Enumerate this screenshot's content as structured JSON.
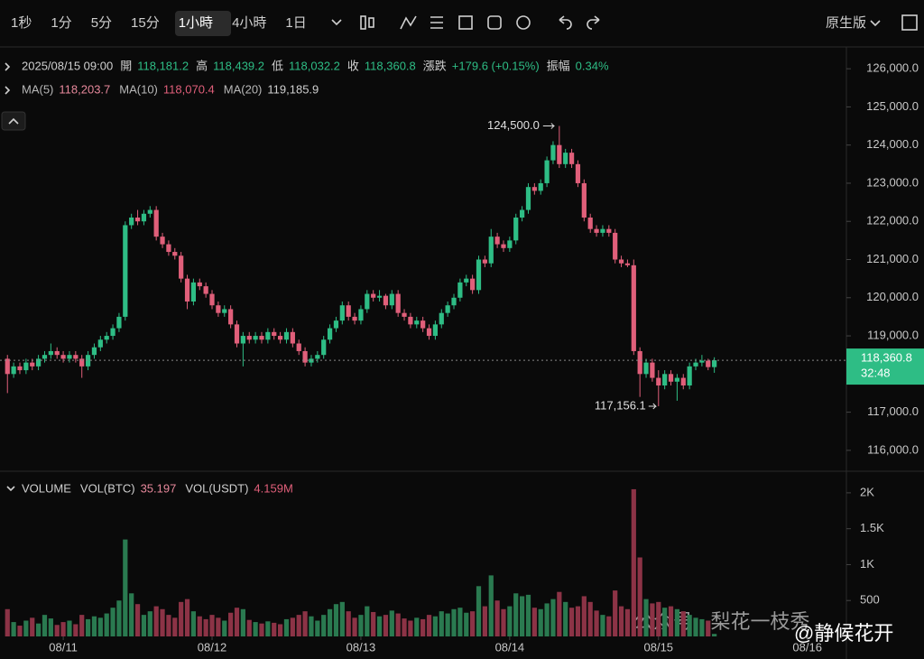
{
  "toolbar": {
    "intervals": [
      "1秒",
      "1分",
      "5分",
      "15分",
      "1小時",
      "4小時",
      "1日"
    ],
    "version": "原生版"
  },
  "legend": {
    "datetime": "2025/08/15 09:00",
    "fields": [
      {
        "label": "開",
        "value": "118,181.2"
      },
      {
        "label": "高",
        "value": "118,439.2"
      },
      {
        "label": "低",
        "value": "118,032.2"
      },
      {
        "label": "收",
        "value": "118,360.8"
      },
      {
        "label": "漲跌",
        "value": "+179.6 (+0.15%)"
      },
      {
        "label": "振幅",
        "value": "0.34%"
      }
    ]
  },
  "ma": [
    {
      "label": "MA(5)",
      "value": "118,203.7",
      "color": "#e6889b"
    },
    {
      "label": "MA(10)",
      "value": "118,070.4",
      "color": "#e05f7a"
    },
    {
      "label": "MA(20)",
      "value": "119,185.9",
      "color": "#cfcfcf"
    }
  ],
  "volume_header": {
    "title": "VOLUME",
    "labels": [
      "VOL(BTC)",
      "VOL(USDT)"
    ],
    "usdt": "4.159M"
  },
  "watermark": [
    "公众号 · 梨花一枝秀",
    "@静候花开"
  ],
  "chart_data": {
    "type": "candlestick",
    "up_color": "#2ebd85",
    "down_color": "#e05f7a",
    "volume_up_color": "#2a7a50",
    "volume_down_color": "#8c3346",
    "candles": [
      [
        118400,
        118500,
        117500,
        118000
      ],
      [
        118000,
        118300,
        117900,
        118200
      ],
      [
        118200,
        118300,
        118000,
        118100
      ],
      [
        118100,
        118400,
        118000,
        118300
      ],
      [
        118300,
        118400,
        118100,
        118200
      ],
      [
        118200,
        118500,
        118100,
        118400
      ],
      [
        118400,
        118600,
        118300,
        118500
      ],
      [
        118500,
        118800,
        118400,
        118600
      ],
      [
        118600,
        118700,
        118400,
        118500
      ],
      [
        118500,
        118600,
        118300,
        118400
      ],
      [
        118400,
        118600,
        118300,
        118500
      ],
      [
        118500,
        118600,
        118300,
        118400
      ],
      [
        118400,
        118500,
        117900,
        118200
      ],
      [
        118200,
        118600,
        118100,
        118500
      ],
      [
        118500,
        118800,
        118400,
        118700
      ],
      [
        118700,
        119000,
        118600,
        118900
      ],
      [
        118900,
        119100,
        118800,
        119000
      ],
      [
        119000,
        119300,
        118900,
        119200
      ],
      [
        119200,
        119600,
        119100,
        119500
      ],
      [
        119500,
        122000,
        119400,
        121900
      ],
      [
        121900,
        122200,
        121800,
        122100
      ],
      [
        122100,
        122300,
        121900,
        122000
      ],
      [
        122000,
        122300,
        121900,
        122200
      ],
      [
        122200,
        122400,
        122100,
        122300
      ],
      [
        122300,
        122400,
        121500,
        121600
      ],
      [
        121600,
        121700,
        121300,
        121400
      ],
      [
        121400,
        121500,
        121100,
        121200
      ],
      [
        121200,
        121300,
        121000,
        121100
      ],
      [
        121100,
        121200,
        120400,
        120500
      ],
      [
        120500,
        120600,
        119700,
        119900
      ],
      [
        119900,
        120500,
        119800,
        120400
      ],
      [
        120400,
        120500,
        120200,
        120300
      ],
      [
        120300,
        120400,
        120000,
        120100
      ],
      [
        120100,
        120200,
        119700,
        119800
      ],
      [
        119800,
        119900,
        119500,
        119600
      ],
      [
        119600,
        119800,
        119500,
        119700
      ],
      [
        119700,
        119800,
        119200,
        119300
      ],
      [
        119300,
        119400,
        118700,
        118800
      ],
      [
        118800,
        119100,
        118200,
        119000
      ],
      [
        119000,
        119100,
        118800,
        118900
      ],
      [
        118900,
        119100,
        118800,
        119000
      ],
      [
        119000,
        119100,
        118800,
        118900
      ],
      [
        118900,
        119200,
        118800,
        119100
      ],
      [
        119100,
        119200,
        118900,
        119000
      ],
      [
        119000,
        119100,
        118800,
        118900
      ],
      [
        118900,
        119200,
        118800,
        119100
      ],
      [
        119100,
        119200,
        118700,
        118800
      ],
      [
        118800,
        118900,
        118500,
        118600
      ],
      [
        118600,
        118700,
        118200,
        118300
      ],
      [
        118300,
        118500,
        118200,
        118400
      ],
      [
        118400,
        118600,
        118300,
        118500
      ],
      [
        118500,
        119000,
        118400,
        118900
      ],
      [
        118900,
        119300,
        118800,
        119200
      ],
      [
        119200,
        119500,
        119100,
        119400
      ],
      [
        119400,
        119900,
        119300,
        119800
      ],
      [
        119800,
        119900,
        119400,
        119500
      ],
      [
        119500,
        119600,
        119300,
        119400
      ],
      [
        119400,
        119800,
        119300,
        119700
      ],
      [
        119700,
        120200,
        119600,
        120100
      ],
      [
        120100,
        120200,
        119900,
        120000
      ],
      [
        120000,
        120200,
        119900,
        120050
      ],
      [
        120050,
        120100,
        119700,
        119800
      ],
      [
        119800,
        120200,
        119700,
        120100
      ],
      [
        120100,
        120200,
        119500,
        119600
      ],
      [
        119600,
        119700,
        119400,
        119500
      ],
      [
        119500,
        119600,
        119200,
        119300
      ],
      [
        119300,
        119500,
        119200,
        119400
      ],
      [
        119400,
        119500,
        119100,
        119200
      ],
      [
        119200,
        119300,
        118900,
        119000
      ],
      [
        119000,
        119400,
        118900,
        119300
      ],
      [
        119300,
        119700,
        119200,
        119600
      ],
      [
        119600,
        119900,
        119500,
        119800
      ],
      [
        119800,
        120100,
        119700,
        120000
      ],
      [
        120000,
        120500,
        119900,
        120400
      ],
      [
        120400,
        120600,
        120300,
        120500
      ],
      [
        120500,
        120600,
        120100,
        120200
      ],
      [
        120200,
        121100,
        120100,
        121000
      ],
      [
        121000,
        121100,
        120800,
        120900
      ],
      [
        120900,
        121800,
        120800,
        121600
      ],
      [
        121600,
        121700,
        121300,
        121400
      ],
      [
        121400,
        121500,
        121200,
        121300
      ],
      [
        121300,
        121600,
        121200,
        121500
      ],
      [
        121500,
        122200,
        121400,
        122100
      ],
      [
        122100,
        122400,
        122000,
        122300
      ],
      [
        122300,
        123000,
        122200,
        122900
      ],
      [
        122900,
        123000,
        122700,
        122800
      ],
      [
        122800,
        123100,
        122700,
        123000
      ],
      [
        123000,
        123700,
        122900,
        123600
      ],
      [
        123600,
        124100,
        123500,
        124000
      ],
      [
        124000,
        124500,
        123400,
        123500
      ],
      [
        123500,
        123900,
        123400,
        123800
      ],
      [
        123800,
        123900,
        123400,
        123500
      ],
      [
        123500,
        123600,
        122900,
        123000
      ],
      [
        123000,
        123100,
        122000,
        122100
      ],
      [
        122100,
        122200,
        121700,
        121800
      ],
      [
        121800,
        121900,
        121600,
        121700
      ],
      [
        121700,
        121900,
        121600,
        121800
      ],
      [
        121800,
        121900,
        121600,
        121700
      ],
      [
        121700,
        121800,
        120900,
        121000
      ],
      [
        121000,
        121100,
        120800,
        120900
      ],
      [
        120900,
        121000,
        120800,
        120850
      ],
      [
        120850,
        121000,
        118500,
        118600
      ],
      [
        118600,
        118700,
        117400,
        118000
      ],
      [
        118000,
        118400,
        117900,
        118300
      ],
      [
        118300,
        118400,
        117800,
        117900
      ],
      [
        117900,
        118100,
        117156.1,
        117700
      ],
      [
        117700,
        118100,
        117600,
        118000
      ],
      [
        118000,
        118100,
        117700,
        117800
      ],
      [
        117800,
        118000,
        117300,
        117900
      ],
      [
        117900,
        118000,
        117600,
        117700
      ],
      [
        117700,
        118300,
        117600,
        118200
      ],
      [
        118200,
        118400,
        118100,
        118300
      ],
      [
        118300,
        118500,
        118200,
        118350
      ],
      [
        118350,
        118400,
        118100,
        118181.2
      ],
      [
        118181.2,
        118439.2,
        118032.2,
        118360.8
      ]
    ],
    "volume": [
      380,
      200,
      150,
      220,
      260,
      180,
      300,
      250,
      160,
      200,
      220,
      170,
      300,
      240,
      280,
      260,
      320,
      400,
      500,
      1350,
      600,
      450,
      300,
      350,
      420,
      380,
      300,
      260,
      480,
      520,
      350,
      280,
      240,
      300,
      260,
      220,
      330,
      400,
      380,
      230,
      200,
      180,
      210,
      190,
      170,
      240,
      260,
      300,
      350,
      280,
      220,
      300,
      380,
      450,
      480,
      350,
      260,
      300,
      420,
      340,
      280,
      300,
      360,
      320,
      250,
      220,
      260,
      240,
      300,
      280,
      350,
      320,
      380,
      400,
      330,
      350,
      700,
      420,
      850,
      500,
      380,
      420,
      600,
      560,
      580,
      400,
      380,
      460,
      520,
      620,
      480,
      400,
      420,
      560,
      480,
      360,
      300,
      280,
      640,
      420,
      380,
      2050,
      1100,
      520,
      460,
      480,
      400,
      420,
      380,
      350,
      300,
      260,
      240,
      220,
      35.197
    ],
    "ylim": [
      115500,
      126500
    ],
    "yticks": [
      {
        "value": 116000,
        "label": "116,000.0"
      },
      {
        "value": 117000,
        "label": "117,000.0"
      },
      {
        "value": 118000,
        "label": "118,000.0"
      },
      {
        "value": 119000,
        "label": "119,000.0"
      },
      {
        "value": 120000,
        "label": "120,000.0"
      },
      {
        "value": 121000,
        "label": "121,000.0"
      },
      {
        "value": 122000,
        "label": "122,000.0"
      },
      {
        "value": 123000,
        "label": "123,000.0"
      },
      {
        "value": 124000,
        "label": "124,000.0"
      },
      {
        "value": 125000,
        "label": "125,000.0"
      },
      {
        "value": 126000,
        "label": "126,000.0"
      }
    ],
    "volume_ylim": [
      0,
      2200
    ],
    "volume_ticks": [
      500,
      {
        "value": 1000,
        "label": "1K"
      },
      {
        "value": 1500,
        "label": "1.5K"
      },
      {
        "value": 2000,
        "label": "2K"
      }
    ],
    "xlim": [
      -1.2,
      135.3
    ],
    "xticks": [
      {
        "value": 9,
        "label": "08/11"
      },
      {
        "value": 33,
        "label": "08/12"
      },
      {
        "value": 57,
        "label": "08/13"
      },
      {
        "value": 81,
        "label": "08/14"
      },
      {
        "value": 105,
        "label": "08/15"
      },
      {
        "value": 129,
        "label": "08/16"
      }
    ],
    "high_label": "124,500.0",
    "low_label": "117,156.1",
    "countdown": "32:48"
  }
}
